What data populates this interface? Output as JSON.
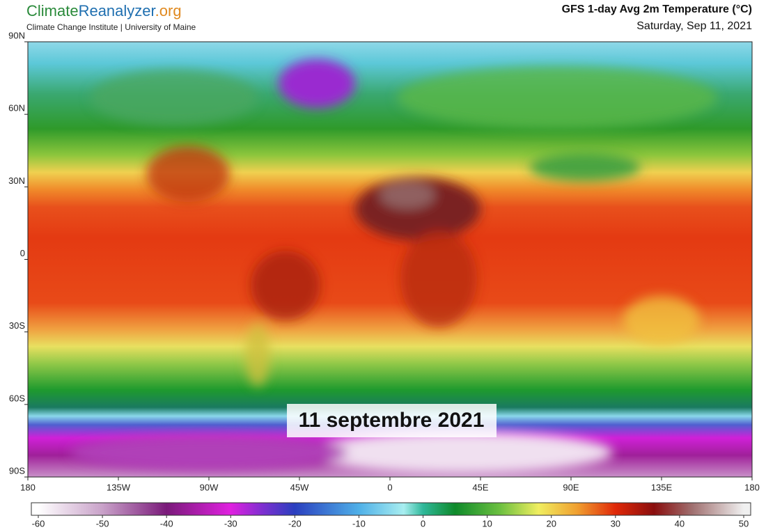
{
  "header": {
    "logo": {
      "part1": "Climate",
      "part2": "Reanalyzer",
      "part3": ".org"
    },
    "subtitle": "Climate Change Institute | University of Maine",
    "title": "GFS 1-day Avg 2m Temperature (°C)",
    "date": "Saturday, Sep 11, 2021"
  },
  "map": {
    "lonlim": [
      -180,
      180
    ],
    "latlim": [
      -90,
      90
    ],
    "lat_ticks": [
      {
        "value": 90,
        "label": "90N"
      },
      {
        "value": 60,
        "label": "60N"
      },
      {
        "value": 30,
        "label": "30N"
      },
      0,
      {
        "value": -30,
        "label": "30S"
      },
      {
        "value": -60,
        "label": "60S"
      },
      {
        "value": -90,
        "label": "90S"
      }
    ],
    "lon_ticks": [
      {
        "value": -180,
        "label": "180"
      },
      {
        "value": -135,
        "label": "135W"
      },
      {
        "value": -90,
        "label": "90W"
      },
      {
        "value": -45,
        "label": "45W"
      },
      0,
      {
        "value": 45,
        "label": "45E"
      },
      {
        "value": 90,
        "label": "90E"
      },
      {
        "value": 135,
        "label": "135E"
      },
      {
        "value": 180,
        "label": "180"
      }
    ],
    "overlay_text": "11 septembre 2021"
  },
  "colorbar": {
    "ticks": [
      -60,
      -50,
      -40,
      -30,
      -20,
      -10,
      0,
      10,
      20,
      30,
      40,
      50
    ],
    "colormap": [
      {
        "value": -60,
        "color": "#ffffff"
      },
      {
        "value": -50,
        "color": "#c9a2c9"
      },
      {
        "value": -40,
        "color": "#7a1a7a"
      },
      {
        "value": -30,
        "color": "#e020e0"
      },
      {
        "value": -25,
        "color": "#7d2fd0"
      },
      {
        "value": -20,
        "color": "#2a3fbf"
      },
      {
        "value": -10,
        "color": "#4fb0e8"
      },
      {
        "value": -3,
        "color": "#a8eef0"
      },
      {
        "value": 0,
        "color": "#2fb89a"
      },
      {
        "value": 5,
        "color": "#0e8a2a"
      },
      {
        "value": 12,
        "color": "#6cc040"
      },
      {
        "value": 18,
        "color": "#f0ee60"
      },
      {
        "value": 24,
        "color": "#f0a030"
      },
      {
        "value": 30,
        "color": "#e02808"
      },
      {
        "value": 36,
        "color": "#8a0e0e"
      },
      {
        "value": 42,
        "color": "#a07070"
      },
      {
        "value": 50,
        "color": "#f0f0f0"
      }
    ]
  }
}
